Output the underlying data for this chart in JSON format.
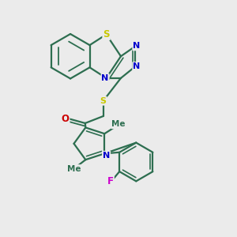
{
  "bg_color": "#ebebeb",
  "bond_color": "#2d6e50",
  "atom_colors": {
    "S": "#c8c800",
    "N": "#0000cc",
    "O": "#cc0000",
    "F": "#cc00cc",
    "C": "#2d6e50"
  },
  "figsize": [
    3.0,
    3.0
  ],
  "dpi": 100
}
